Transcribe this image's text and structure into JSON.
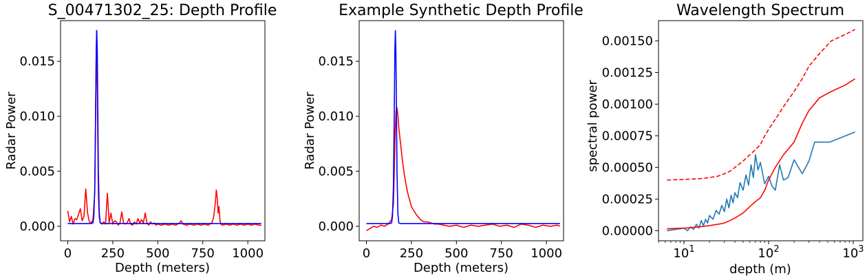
{
  "chart_data": [
    {
      "type": "line",
      "title": "S_00471302_25: Depth Profile",
      "xlabel": "Depth (meters)",
      "ylabel": "Radar Power",
      "xlim": [
        -40,
        1095
      ],
      "ylim": [
        -0.00132,
        0.0187
      ],
      "xticks": [
        0,
        250,
        500,
        750,
        1000
      ],
      "xtick_labels": [
        "0",
        "250",
        "500",
        "750",
        "1000"
      ],
      "yticks": [
        0,
        0.005,
        0.01,
        0.015
      ],
      "ytick_labels": [
        "0.000",
        "0.005",
        "0.010",
        "0.015"
      ],
      "grid": false,
      "series": [
        {
          "color": "#ff0000",
          "x": [
            0,
            10,
            20,
            30,
            40,
            50,
            60,
            70,
            80,
            90,
            100,
            110,
            120,
            130,
            140,
            150,
            155,
            160,
            165,
            170,
            175,
            180,
            190,
            200,
            210,
            220,
            225,
            230,
            240,
            250,
            260,
            270,
            280,
            290,
            300,
            310,
            320,
            330,
            340,
            350,
            360,
            370,
            380,
            390,
            400,
            410,
            420,
            430,
            440,
            450,
            460,
            470,
            480,
            490,
            500,
            520,
            540,
            560,
            580,
            600,
            620,
            630,
            640,
            660,
            680,
            700,
            720,
            740,
            760,
            780,
            800,
            810,
            820,
            825,
            830,
            835,
            840,
            845,
            850,
            860,
            880,
            900,
            920,
            940,
            960,
            980,
            1000,
            1020,
            1040,
            1060,
            1075
          ],
          "values": [
            0.0014,
            0.0004,
            0.0009,
            0.0002,
            0.0007,
            0.0006,
            0.0011,
            0.0016,
            0.0005,
            0.0009,
            0.0034,
            0.0012,
            0.0004,
            0.0003,
            0.0006,
            0.003,
            0.011,
            0.0178,
            0.011,
            0.003,
            0.0008,
            0.0004,
            0.0002,
            0.0004,
            0.0002,
            0.003,
            0.0018,
            0.0003,
            0.0012,
            0.0002,
            0.0005,
            0.0004,
            0.0001,
            0.0003,
            0.0013,
            0.0003,
            0.0002,
            0.0003,
            0.0007,
            0.0002,
            0.0001,
            0.0004,
            0.0002,
            0.0007,
            0.0003,
            0.0006,
            0.0003,
            0.0012,
            0.0003,
            0.0001,
            0.0004,
            0.0002,
            0.0003,
            0.0001,
            0.0002,
            0.0001,
            0.0002,
            0.0001,
            0.0002,
            0.0001,
            0.0003,
            0.0005,
            0.0002,
            0.0001,
            0.0002,
            0.0001,
            0.0002,
            0.0001,
            0.0002,
            0.0001,
            0.0003,
            0.0008,
            0.0022,
            0.0033,
            0.0026,
            0.0012,
            0.0018,
            0.0006,
            0.0002,
            0.0001,
            0.0002,
            0.0001,
            0.0002,
            0.0001,
            0.0002,
            0.0001,
            0.0002,
            0.0001,
            0.0002,
            0.0001,
            0.0001
          ]
        },
        {
          "color": "#0000ff",
          "x": [
            0,
            130,
            140,
            145,
            150,
            155,
            158,
            161,
            164,
            167,
            170,
            175,
            180,
            190,
            210,
            1075
          ],
          "values": [
            0.00025,
            0.00025,
            0.0003,
            0.0009,
            0.0035,
            0.0105,
            0.0158,
            0.0178,
            0.0158,
            0.0105,
            0.005,
            0.0012,
            0.0003,
            0.00025,
            0.00025,
            0.00025
          ]
        }
      ]
    },
    {
      "type": "line",
      "title": "Example Synthetic Depth Profile",
      "xlabel": "Depth (meters)",
      "ylabel": "Radar Power",
      "xlim": [
        -40,
        1095
      ],
      "ylim": [
        -0.00132,
        0.0187
      ],
      "xticks": [
        0,
        250,
        500,
        750,
        1000
      ],
      "xtick_labels": [
        "0",
        "250",
        "500",
        "750",
        "1000"
      ],
      "yticks": [
        0,
        0.005,
        0.01,
        0.015
      ],
      "ytick_labels": [
        "0.000",
        "0.005",
        "0.010",
        "0.015"
      ],
      "grid": false,
      "series": [
        {
          "color": "#ff0000",
          "x": [
            0,
            20,
            40,
            60,
            80,
            100,
            120,
            140,
            150,
            155,
            160,
            165,
            170,
            175,
            180,
            190,
            200,
            210,
            220,
            230,
            240,
            250,
            260,
            280,
            300,
            320,
            340,
            360,
            380,
            400,
            430,
            460,
            500,
            540,
            580,
            620,
            660,
            700,
            740,
            780,
            820,
            860,
            900,
            940,
            980,
            1020,
            1060,
            1075
          ],
          "values": [
            -0.0004,
            -0.0002,
            0.0,
            -0.0001,
            0.0001,
            0.0,
            0.0002,
            0.0006,
            0.002,
            0.005,
            0.0085,
            0.0105,
            0.0108,
            0.0101,
            0.009,
            0.0075,
            0.006,
            0.0048,
            0.0038,
            0.003,
            0.0024,
            0.0018,
            0.0015,
            0.001,
            0.0006,
            0.0004,
            0.0004,
            0.0003,
            0.0002,
            0.0002,
            0.0001,
            0.0,
            0.0001,
            -0.0001,
            0.0001,
            0.0,
            0.0001,
            0.0002,
            0.0,
            0.0001,
            -0.0001,
            0.0002,
            0.0001,
            -0.0001,
            0.0001,
            0.0,
            0.0001,
            0.0
          ]
        },
        {
          "color": "#0000ff",
          "x": [
            0,
            130,
            140,
            145,
            150,
            155,
            158,
            161,
            164,
            167,
            170,
            175,
            180,
            190,
            210,
            1075
          ],
          "values": [
            0.00025,
            0.00025,
            0.0003,
            0.0009,
            0.0035,
            0.0105,
            0.0158,
            0.0178,
            0.0158,
            0.0105,
            0.005,
            0.0012,
            0.0003,
            0.00025,
            0.00025,
            0.00025
          ]
        }
      ]
    },
    {
      "type": "line",
      "title": "Wavelength Spectrum",
      "xlabel": "depth (m)",
      "ylabel": "spectral power",
      "xscale": "log",
      "xlim": [
        5,
        1300
      ],
      "ylim": [
        -8e-05,
        0.00166
      ],
      "xticks": [
        10,
        100,
        1000
      ],
      "xtick_labels": [
        "10",
        "10",
        "10"
      ],
      "xtick_exponents": [
        "1",
        "2",
        "3"
      ],
      "yticks": [
        0,
        0.00025,
        0.0005,
        0.00075,
        0.001,
        0.00125,
        0.0015
      ],
      "ytick_labels": [
        "0.00000",
        "0.00025",
        "0.00050",
        "0.00075",
        "0.00100",
        "0.00125",
        "0.00150"
      ],
      "grid": false,
      "series": [
        {
          "color": "#1f77b4",
          "x": [
            6.3,
            8,
            10,
            11,
            12,
            13,
            14,
            15,
            16,
            17,
            18,
            19,
            20,
            22,
            24,
            26,
            28,
            30,
            32,
            34,
            36,
            38,
            40,
            43,
            46,
            50,
            54,
            58,
            62,
            66,
            70,
            75,
            80,
            85,
            90,
            100,
            110,
            120,
            135,
            150,
            170,
            200,
            250,
            300,
            350,
            400,
            530,
            1050
          ],
          "values": [
            0.0,
            1e-05,
            2e-05,
            0.0,
            3e-05,
            1e-05,
            5e-05,
            2e-05,
            8e-05,
            4e-05,
            9e-05,
            6e-05,
            0.00012,
            9e-05,
            0.00016,
            0.00013,
            0.0002,
            0.00015,
            0.00025,
            0.00018,
            0.00028,
            0.00022,
            0.0003,
            0.00026,
            0.00038,
            0.00032,
            0.00044,
            0.00036,
            0.00052,
            0.00042,
            0.0006,
            0.00048,
            0.00054,
            0.00045,
            0.00037,
            0.00043,
            0.00035,
            0.00032,
            0.00052,
            0.0004,
            0.00042,
            0.00056,
            0.00045,
            0.00055,
            0.0007,
            0.0007,
            0.0007,
            0.00078
          ]
        },
        {
          "color": "#ff0000",
          "dash": "solid",
          "x": [
            6.3,
            10,
            15,
            20,
            25,
            30,
            35,
            40,
            50,
            60,
            70,
            80,
            90,
            100,
            120,
            150,
            200,
            250,
            300,
            400,
            550,
            800,
            1050
          ],
          "values": [
            1.5e-05,
            2e-05,
            3e-05,
            4e-05,
            5e-05,
            6e-05,
            8e-05,
            0.0001,
            0.00014,
            0.00019,
            0.00023,
            0.00026,
            0.00032,
            0.0004,
            0.0005,
            0.0006,
            0.0007,
            0.00085,
            0.00095,
            0.00105,
            0.0011,
            0.00115,
            0.0012
          ]
        },
        {
          "color": "#ff0000",
          "dash": "dashed",
          "x": [
            6.3,
            10,
            15,
            20,
            25,
            30,
            35,
            40,
            50,
            60,
            70,
            80,
            90,
            100,
            120,
            150,
            200,
            250,
            300,
            400,
            550,
            800,
            1050
          ],
          "values": [
            0.0004,
            0.000405,
            0.00041,
            0.00042,
            0.00043,
            0.00045,
            0.00047,
            0.0005,
            0.00055,
            0.0006,
            0.00064,
            0.00068,
            0.00075,
            0.0008,
            0.00088,
            0.00098,
            0.0011,
            0.0012,
            0.0013,
            0.0014,
            0.0015,
            0.00155,
            0.00159
          ]
        }
      ]
    }
  ]
}
